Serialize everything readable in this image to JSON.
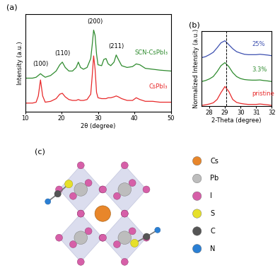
{
  "chart_data": [
    {
      "type": "line",
      "title": "(a)",
      "x_label": "2θ (degree)",
      "y_label": "Intensity (a.u.)",
      "xlim": [
        10,
        50
      ],
      "xticks": [
        10,
        20,
        30,
        40,
        50
      ],
      "ylim": [
        0,
        11
      ],
      "tick_labels": "x",
      "x": [
        10,
        11,
        12,
        13,
        13.6,
        14.2,
        14.8,
        15.5,
        17,
        18.5,
        19.5,
        20.2,
        21,
        22,
        23,
        24,
        24.6,
        25.2,
        26,
        27,
        28,
        28.4,
        28.8,
        29.2,
        29.6,
        30,
        31,
        31.6,
        32.2,
        32.8,
        33.5,
        34.4,
        35,
        35.6,
        36.5,
        38,
        39.5,
        40.5,
        41.5,
        43,
        45,
        47,
        50
      ],
      "series": [
        {
          "name": "SCN-CsPbI₃",
          "color": "#2e8b2e",
          "values": [
            3.8,
            3.8,
            3.8,
            3.9,
            4.1,
            4.3,
            4.1,
            3.9,
            4.1,
            4.6,
            5.3,
            5.6,
            5.0,
            4.6,
            4.6,
            5.0,
            5.6,
            5.0,
            4.8,
            5.0,
            6.0,
            7.5,
            9.2,
            8.6,
            6.5,
            5.3,
            5.2,
            5.9,
            6.0,
            5.4,
            5.2,
            5.6,
            6.4,
            5.9,
            5.2,
            5.0,
            5.1,
            5.4,
            5.3,
            4.9,
            4.8,
            4.7,
            4.6
          ]
        },
        {
          "name": "CsPbI₃",
          "color": "#e8292a",
          "values": [
            1.0,
            1.0,
            1.0,
            1.1,
            1.8,
            3.6,
            1.8,
            1.1,
            1.2,
            1.5,
            2.0,
            2.1,
            1.7,
            1.4,
            1.3,
            1.3,
            1.4,
            1.3,
            1.3,
            1.4,
            2.0,
            4.0,
            6.3,
            4.8,
            2.2,
            1.6,
            1.5,
            1.5,
            1.5,
            1.6,
            1.6,
            1.7,
            1.8,
            1.7,
            1.5,
            1.3,
            1.3,
            1.6,
            1.4,
            1.2,
            1.2,
            1.1,
            1.1
          ]
        }
      ],
      "annotations": [
        {
          "text": "(100)",
          "x": 14.2,
          "y": 5.0
        },
        {
          "text": "(110)",
          "x": 20.2,
          "y": 6.2
        },
        {
          "text": "(200)",
          "x": 29.2,
          "y": 9.8
        },
        {
          "text": "(211)",
          "x": 35.0,
          "y": 7.0
        }
      ]
    },
    {
      "type": "line",
      "title": "(b)",
      "x_label": "2-Theta (degree)",
      "y_label": "Normalized Intensity (a.u.)",
      "xlim": [
        27.5,
        32
      ],
      "xticks": [
        28,
        29,
        30,
        31,
        32
      ],
      "ylim": [
        0,
        3.8
      ],
      "tick_labels": "x",
      "reference_line": {
        "x": 29.1,
        "line_style": "dashed"
      },
      "x": [
        27.5,
        27.75,
        28,
        28.25,
        28.5,
        28.75,
        29,
        29.25,
        29.5,
        29.75,
        30,
        30.25,
        30.5,
        30.75,
        31,
        31.25,
        31.5,
        31.75,
        32
      ],
      "series": [
        {
          "name": "25%",
          "color": "#3c4fb0",
          "values": [
            2.45,
            2.5,
            2.6,
            2.72,
            2.95,
            3.2,
            3.3,
            3.1,
            2.9,
            2.75,
            2.68,
            2.62,
            2.6,
            2.6,
            2.6,
            2.62,
            2.6,
            2.58,
            2.55
          ]
        },
        {
          "name": "3.3%",
          "color": "#2e8b2e",
          "values": [
            1.25,
            1.3,
            1.38,
            1.5,
            1.75,
            2.05,
            2.2,
            2.0,
            1.7,
            1.5,
            1.4,
            1.35,
            1.33,
            1.32,
            1.32,
            1.33,
            1.3,
            1.28,
            1.25
          ]
        },
        {
          "name": "pristine",
          "color": "#e8292a",
          "values": [
            0.05,
            0.08,
            0.12,
            0.18,
            0.35,
            0.7,
            1.0,
            0.75,
            0.35,
            0.2,
            0.15,
            0.12,
            0.1,
            0.1,
            0.1,
            0.12,
            0.1,
            0.08,
            0.05
          ]
        }
      ]
    }
  ],
  "diagram": {
    "title": "(c)",
    "legend": [
      {
        "label": "Cs",
        "color": "#e8862a"
      },
      {
        "label": "Pb",
        "color": "#bdbdbd"
      },
      {
        "label": "I",
        "color": "#d65fa8"
      },
      {
        "label": "S",
        "color": "#e6e02a"
      },
      {
        "label": "C",
        "color": "#555555"
      },
      {
        "label": "N",
        "color": "#2a7fd4"
      }
    ]
  }
}
